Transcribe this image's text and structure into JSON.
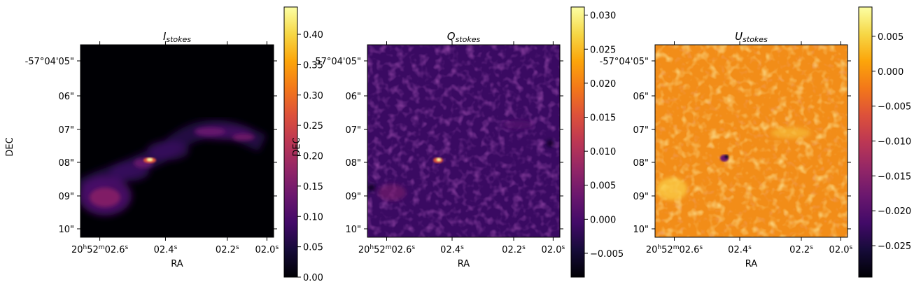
{
  "chart_data": [
    {
      "type": "heatmap",
      "title_main": "I",
      "title_sub": "stokes",
      "xlabel": "RA",
      "ylabel": "DEC",
      "colormap": "inferno",
      "x_tick_labels": [
        "20h52m02.6s",
        "02.4s",
        "02.2s",
        "02.0s"
      ],
      "y_tick_labels": [
        "-57°04'05\"",
        "06\"",
        "07\"",
        "08\"",
        "09\"",
        "10\""
      ],
      "colorbar": {
        "ticks": [
          "0.00",
          "0.05",
          "0.10",
          "0.15",
          "0.20",
          "0.25",
          "0.30",
          "0.35",
          "0.40"
        ],
        "range": [
          0.0,
          0.445
        ]
      }
    },
    {
      "type": "heatmap",
      "title_main": "Q",
      "title_sub": "stokes",
      "xlabel": "RA",
      "ylabel": "DEC",
      "colormap": "inferno",
      "x_tick_labels": [
        "20h52m02.6s",
        "02.4s",
        "02.2s",
        "02.0s"
      ],
      "y_tick_labels": [
        "-57°04'05\"",
        "06\"",
        "07\"",
        "08\"",
        "09\"",
        "10\""
      ],
      "colorbar": {
        "ticks": [
          "−0.005",
          "0.000",
          "0.005",
          "0.010",
          "0.015",
          "0.020",
          "0.025",
          "0.030"
        ],
        "range": [
          -0.0085,
          0.0312
        ]
      }
    },
    {
      "type": "heatmap",
      "title_main": "U",
      "title_sub": "stokes",
      "xlabel": "RA",
      "ylabel": "",
      "colormap": "inferno",
      "x_tick_labels": [
        "20h52m02.6s",
        "02.4s",
        "02.2s",
        "02.0s"
      ],
      "y_tick_labels": [
        "-57°04'05\"",
        "06\"",
        "07\"",
        "08\"",
        "09\"",
        "10\""
      ],
      "colorbar": {
        "ticks": [
          "−0.025",
          "−0.020",
          "−0.015",
          "−0.010",
          "−0.005",
          "0.000",
          "0.005"
        ],
        "range": [
          -0.0295,
          0.0092
        ]
      }
    }
  ]
}
